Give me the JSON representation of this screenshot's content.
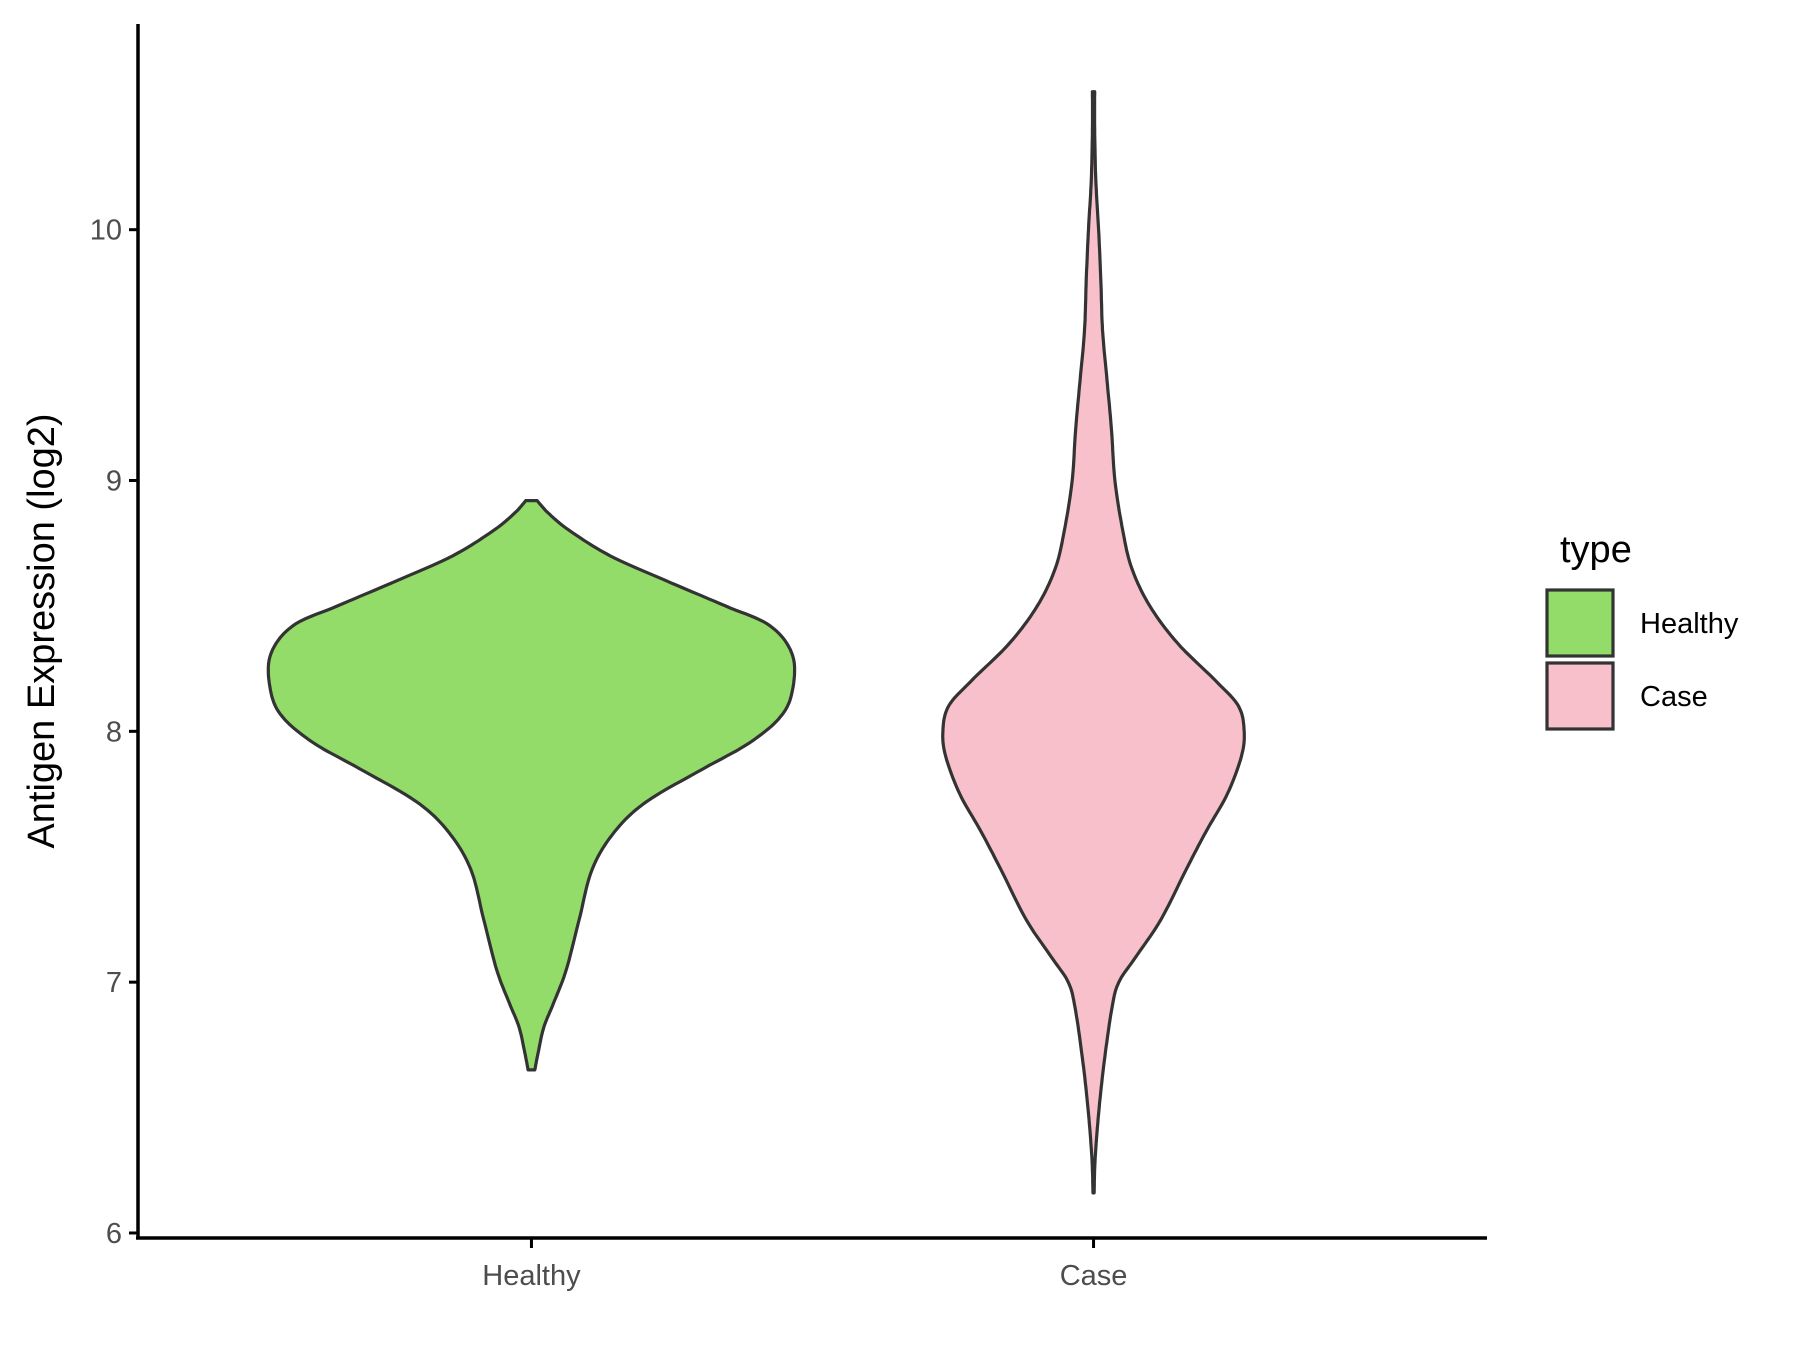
{
  "chart_data": {
    "type": "violin",
    "xlabel": "",
    "ylabel": "Antigen Expression (log2)",
    "ylim": [
      5.98,
      10.82
    ],
    "yticks": [
      6,
      7,
      8,
      9,
      10
    ],
    "categories": [
      "Healthy",
      "Case"
    ],
    "grid": false,
    "legend": {
      "title": "type",
      "placement": "right",
      "entries": [
        {
          "label": "Healthy",
          "color": "#93DC6A"
        },
        {
          "label": "Case",
          "color": "#F7C0CB"
        }
      ]
    },
    "series": [
      {
        "name": "Healthy",
        "color": "#93DC6A",
        "min": 6.65,
        "max": 8.92,
        "profile": [
          [
            6.65,
            0.006
          ],
          [
            6.72,
            0.012
          ],
          [
            6.82,
            0.022
          ],
          [
            6.92,
            0.04
          ],
          [
            7.05,
            0.062
          ],
          [
            7.25,
            0.085
          ],
          [
            7.45,
            0.108
          ],
          [
            7.6,
            0.148
          ],
          [
            7.72,
            0.205
          ],
          [
            7.85,
            0.305
          ],
          [
            7.95,
            0.385
          ],
          [
            8.05,
            0.44
          ],
          [
            8.15,
            0.463
          ],
          [
            8.3,
            0.465
          ],
          [
            8.42,
            0.425
          ],
          [
            8.5,
            0.345
          ],
          [
            8.6,
            0.24
          ],
          [
            8.7,
            0.14
          ],
          [
            8.8,
            0.068
          ],
          [
            8.87,
            0.03
          ],
          [
            8.92,
            0.01
          ]
        ]
      },
      {
        "name": "Case",
        "color": "#F7C0CB",
        "min": 6.16,
        "max": 10.55,
        "profile": [
          [
            6.16,
            0.001
          ],
          [
            6.3,
            0.003
          ],
          [
            6.5,
            0.01
          ],
          [
            6.7,
            0.02
          ],
          [
            6.9,
            0.033
          ],
          [
            7.0,
            0.045
          ],
          [
            7.1,
            0.075
          ],
          [
            7.25,
            0.12
          ],
          [
            7.45,
            0.165
          ],
          [
            7.6,
            0.2
          ],
          [
            7.75,
            0.238
          ],
          [
            7.9,
            0.263
          ],
          [
            8.0,
            0.268
          ],
          [
            8.1,
            0.258
          ],
          [
            8.2,
            0.218
          ],
          [
            8.35,
            0.15
          ],
          [
            8.5,
            0.1
          ],
          [
            8.65,
            0.068
          ],
          [
            8.8,
            0.052
          ],
          [
            9.0,
            0.038
          ],
          [
            9.2,
            0.032
          ],
          [
            9.4,
            0.024
          ],
          [
            9.6,
            0.016
          ],
          [
            9.8,
            0.013
          ],
          [
            10.0,
            0.009
          ],
          [
            10.2,
            0.004
          ],
          [
            10.4,
            0.002
          ],
          [
            10.55,
            0.002
          ]
        ]
      }
    ]
  }
}
